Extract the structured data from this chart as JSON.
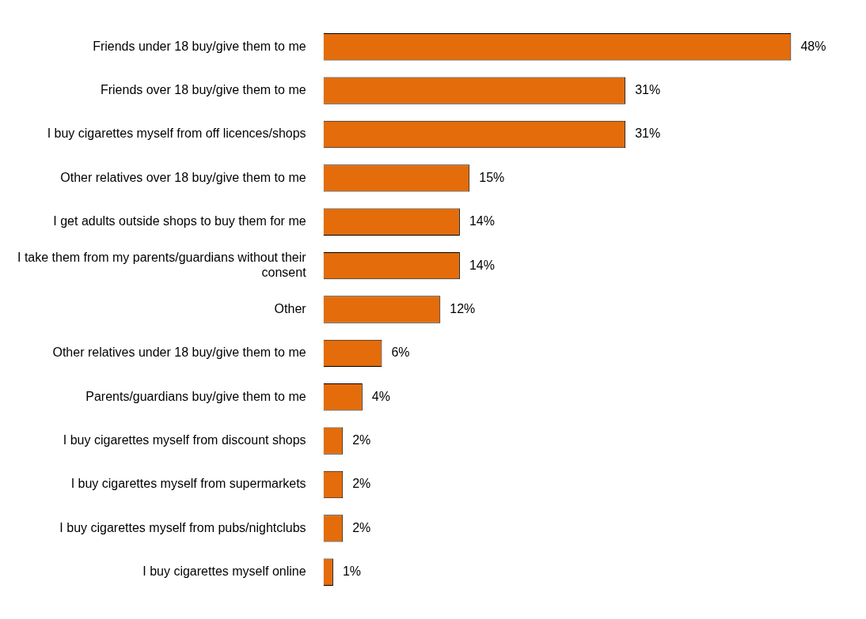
{
  "chart_data": {
    "type": "bar",
    "orientation": "horizontal",
    "categories": [
      "Friends under 18 buy/give them to me",
      "Friends over 18 buy/give them to me",
      "I buy cigarettes myself from off licences/shops",
      "Other relatives over 18 buy/give them to me",
      "I get adults outside shops to buy them for me",
      "I take them from my parents/guardians without their consent",
      "Other",
      "Other relatives under 18 buy/give them to me",
      "Parents/guardians buy/give them to me",
      "I buy cigarettes myself from discount shops",
      "I buy cigarettes myself from supermarkets",
      "I buy cigarettes myself from pubs/nightclubs",
      "I buy cigarettes myself online"
    ],
    "values": [
      48,
      31,
      31,
      15,
      14,
      14,
      12,
      6,
      4,
      2,
      2,
      2,
      1
    ],
    "value_labels": [
      "48%",
      "31%",
      "31%",
      "15%",
      "14%",
      "14%",
      "12%",
      "6%",
      "4%",
      "2%",
      "2%",
      "2%",
      "1%"
    ],
    "color": "#e46c0a",
    "legend": false
  }
}
